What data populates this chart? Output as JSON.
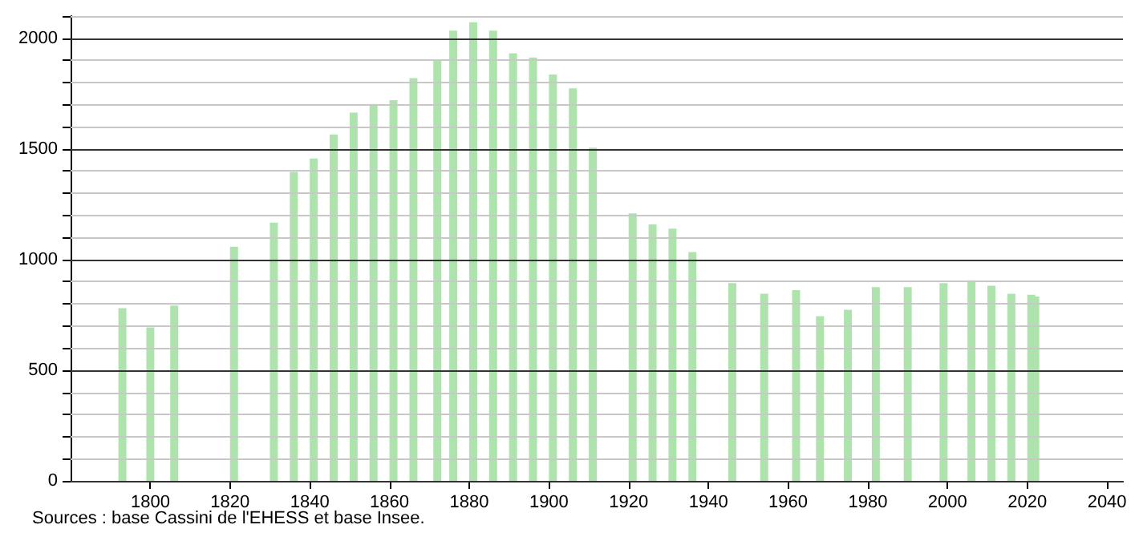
{
  "chart_data": {
    "type": "bar",
    "x": [
      1793,
      1800,
      1806,
      1821,
      1831,
      1836,
      1841,
      1846,
      1851,
      1856,
      1861,
      1866,
      1872,
      1876,
      1881,
      1886,
      1891,
      1896,
      1901,
      1906,
      1911,
      1921,
      1926,
      1931,
      1936,
      1946,
      1954,
      1962,
      1968,
      1975,
      1982,
      1990,
      1999,
      2006,
      2011,
      2016,
      2021,
      2022
    ],
    "values": [
      780,
      693,
      792,
      1058,
      1167,
      1396,
      1456,
      1565,
      1664,
      1703,
      1720,
      1819,
      1903,
      2034,
      2072,
      2034,
      1932,
      1913,
      1836,
      1773,
      1505,
      1208,
      1159,
      1140,
      1034,
      893,
      845,
      862,
      744,
      773,
      875,
      875,
      893,
      906,
      882,
      845,
      841,
      833
    ],
    "color": "#aee3ae",
    "xlim": [
      1780,
      2044
    ],
    "xticks": [
      1800,
      1820,
      1840,
      1860,
      1880,
      1900,
      1920,
      1940,
      1960,
      1980,
      2000,
      2020,
      2040
    ],
    "ylim": [
      0,
      2100
    ],
    "yticks": [
      0,
      {
        "value": 100,
        "label": null
      },
      {
        "value": 200,
        "label": null
      },
      {
        "value": 300,
        "label": null
      },
      {
        "value": 400,
        "label": null
      },
      500,
      {
        "value": 600,
        "label": null
      },
      {
        "value": 700,
        "label": null
      },
      {
        "value": 800,
        "label": null
      },
      {
        "value": 900,
        "label": null
      },
      1000,
      {
        "value": 1100,
        "label": null
      },
      {
        "value": 1200,
        "label": null
      },
      {
        "value": 1300,
        "label": null
      },
      {
        "value": 1400,
        "label": null
      },
      1500,
      {
        "value": 1600,
        "label": null
      },
      {
        "value": 1700,
        "label": null
      },
      {
        "value": 1800,
        "label": null
      },
      {
        "value": 1900,
        "label": null
      },
      2000,
      {
        "value": 2100,
        "label": null
      }
    ],
    "grid": "y",
    "annotations": [
      "Sources : base Cassini de l'EHESS et base Insee."
    ]
  }
}
